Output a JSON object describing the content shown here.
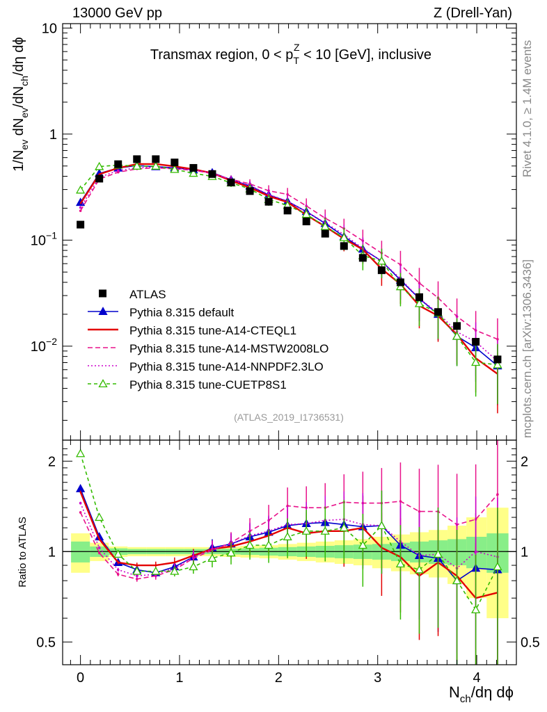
{
  "header": {
    "energy_label": "13000 GeV pp",
    "process_label": "Z (Drell-Yan)",
    "side_label_top": "Rivet 4.1.0, ≥ 1.4M events",
    "side_label_bottom": "mcplots.cern.ch [arXiv:1306.3436]"
  },
  "chart_data": {
    "type": "line",
    "title": "Transmax region, 0 < pT^Z < 10 [GeV], inclusive",
    "title_parts": {
      "pre": "Transmax region, 0 < p",
      "sub": "T",
      "sup": "Z",
      "post": " < 10 [GeV], inclusive"
    },
    "watermark": "(ATLAS_2019_I1736531)",
    "xlabel": "Nch/dη dϕ",
    "xlabel_parts": {
      "pre": "N",
      "sub": "ch",
      "post": "/dη dϕ"
    },
    "ylabel": "1/Nev dNev/dNch/dη dϕ",
    "ratio_ylabel": "Ratio to ATLAS",
    "xlim": [
      -0.18,
      4.4
    ],
    "ylim": [
      0.0013,
      11.0
    ],
    "yscale": "log",
    "ratio_ylim": [
      0.42,
      2.35
    ],
    "x_ticks": [
      0,
      1,
      2,
      3,
      4
    ],
    "x_tick_labels": [
      "0",
      "1",
      "2",
      "3",
      "4"
    ],
    "y_ticks": [
      {
        "value": 10,
        "base": "10",
        "exp": ""
      },
      {
        "value": 1,
        "base": "1",
        "exp": ""
      },
      {
        "value": 0.1,
        "base": "10",
        "exp": "−1"
      },
      {
        "value": 0.01,
        "base": "10",
        "exp": "−2"
      }
    ],
    "ratio_ticks": [
      {
        "value": 2,
        "label": "2"
      },
      {
        "value": 1,
        "label": "1"
      },
      {
        "value": 0.5,
        "label": "0.5"
      }
    ],
    "x": [
      0.0,
      0.19,
      0.38,
      0.57,
      0.76,
      0.95,
      1.14,
      1.33,
      1.52,
      1.71,
      1.9,
      2.09,
      2.28,
      2.47,
      2.66,
      2.85,
      3.04,
      3.23,
      3.42,
      3.61,
      3.8,
      3.99,
      4.21
    ],
    "data": {
      "name": "ATLAS",
      "values": [
        0.14,
        0.38,
        0.52,
        0.58,
        0.58,
        0.54,
        0.48,
        0.42,
        0.35,
        0.29,
        0.23,
        0.19,
        0.15,
        0.115,
        0.088,
        0.068,
        0.052,
        0.04,
        0.029,
        0.021,
        0.0155,
        0.011,
        0.0075
      ],
      "band_inner": [
        0.08,
        0.04,
        0.025,
        0.02,
        0.02,
        0.02,
        0.02,
        0.02,
        0.022,
        0.025,
        0.03,
        0.035,
        0.04,
        0.045,
        0.05,
        0.055,
        0.06,
        0.07,
        0.08,
        0.09,
        0.1,
        0.12,
        0.15
      ],
      "band_outer": [
        0.15,
        0.07,
        0.04,
        0.035,
        0.035,
        0.035,
        0.035,
        0.035,
        0.04,
        0.045,
        0.05,
        0.06,
        0.07,
        0.08,
        0.09,
        0.1,
        0.12,
        0.14,
        0.16,
        0.18,
        0.22,
        0.3,
        0.4
      ]
    },
    "series": [
      {
        "name": "Pythia 8.315 default",
        "color": "#0000cc",
        "dash": "",
        "marker": "triangle-filled",
        "ratio": [
          1.62,
          1.12,
          0.92,
          0.87,
          0.85,
          0.89,
          0.96,
          1.03,
          1.06,
          1.12,
          1.16,
          1.22,
          1.24,
          1.25,
          1.23,
          1.21,
          1.22,
          1.05,
          0.97,
          0.95,
          0.8,
          0.88,
          0.87
        ]
      },
      {
        "name": "Pythia 8.315 tune-A14-CTEQL1",
        "color": "#e30000",
        "dash": "",
        "marker": "none",
        "ratio": [
          1.58,
          1.1,
          0.92,
          0.9,
          0.9,
          0.92,
          0.97,
          1.02,
          1.04,
          1.08,
          1.13,
          1.2,
          1.15,
          1.17,
          1.17,
          1.2,
          1.03,
          0.96,
          0.83,
          0.92,
          0.83,
          0.7,
          0.73
        ]
      },
      {
        "name": "Pythia 8.315 tune-A14-MSTW2008LO",
        "color": "#e8118a",
        "dash": "7,4",
        "marker": "none",
        "ratio": [
          1.35,
          0.99,
          0.84,
          0.81,
          0.83,
          0.87,
          0.95,
          1.01,
          1.07,
          1.17,
          1.27,
          1.42,
          1.4,
          1.4,
          1.46,
          1.45,
          1.45,
          1.47,
          1.36,
          1.36,
          1.23,
          1.28,
          1.55
        ]
      },
      {
        "name": "Pythia 8.315 tune-A14-NNPDF2.3LO",
        "color": "#cc00cc",
        "dash": "2,3",
        "marker": "none",
        "ratio": [
          1.45,
          1.03,
          0.87,
          0.83,
          0.84,
          0.88,
          0.96,
          1.02,
          1.06,
          1.13,
          1.17,
          1.23,
          1.24,
          1.27,
          1.28,
          1.23,
          1.22,
          1.08,
          0.97,
          0.98,
          0.88,
          1.0,
          0.96
        ]
      },
      {
        "name": "Pythia 8.315 tune-CUETP8S1",
        "color": "#33bb00",
        "dash": "5,4",
        "marker": "triangle-open",
        "ratio": [
          2.12,
          1.3,
          0.98,
          0.86,
          0.86,
          0.86,
          0.89,
          0.95,
          0.99,
          1.05,
          1.05,
          1.12,
          1.17,
          1.17,
          1.2,
          1.05,
          1.22,
          0.91,
          0.87,
          0.98,
          0.8,
          0.64,
          0.89
        ]
      }
    ]
  }
}
